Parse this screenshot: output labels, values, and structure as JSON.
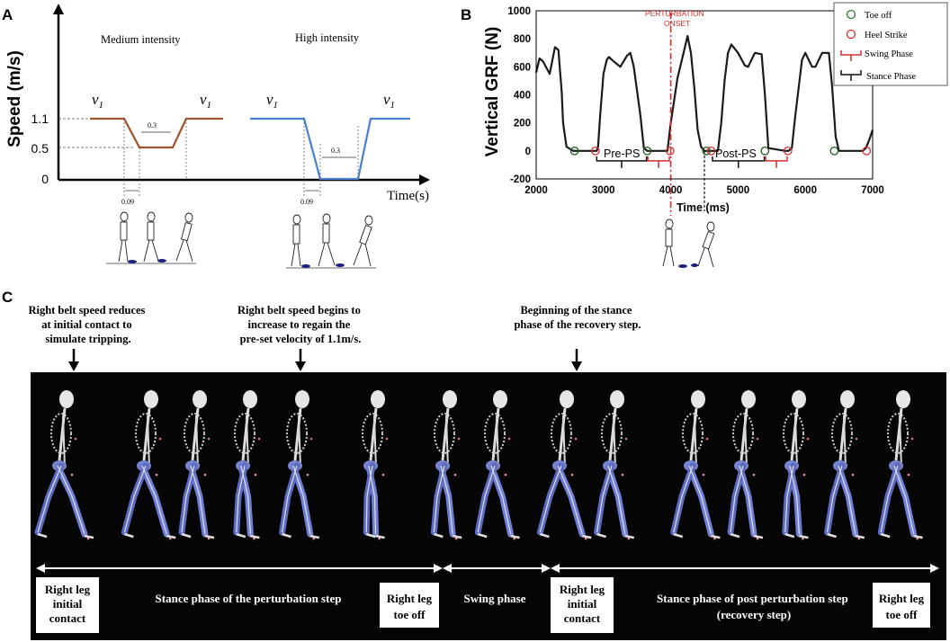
{
  "panels": {
    "a": {
      "label": "A"
    },
    "b": {
      "label": "B"
    },
    "c": {
      "label": "C"
    }
  },
  "chart_data": [
    {
      "type": "line",
      "id": "panel-a",
      "ylabel": "Speed (m/s)",
      "xlabel": "Time(s)",
      "y_ticks": [
        "1.1",
        "0.5",
        "0"
      ],
      "conditions": [
        {
          "title": "Medium intensity",
          "color": "#a0522d",
          "start_label": "v1",
          "end_label": "v1",
          "plateau_label": "0.3",
          "drop_label": "0.09",
          "points_speed": [
            1.1,
            1.1,
            0.5,
            0.5,
            1.1,
            1.1
          ]
        },
        {
          "title": "High intensity",
          "color": "#4a7fd0",
          "start_label": "v1",
          "end_label": "v1",
          "plateau_label": "0.3",
          "drop_label": "0.09",
          "points_speed": [
            1.1,
            1.1,
            0.0,
            0.0,
            1.1,
            1.1
          ]
        }
      ]
    },
    {
      "type": "line",
      "id": "panel-b",
      "ylabel": "Vertical GRF (N)",
      "xlabel": "Time (ms)",
      "xlim": [
        2000,
        7000
      ],
      "ylim": [
        -200,
        1000
      ],
      "x_ticks": [
        2000,
        3000,
        4000,
        5000,
        6000,
        7000
      ],
      "y_ticks": [
        -200,
        0,
        200,
        400,
        600,
        800,
        1000
      ],
      "perturbation_label": "PERTURBATION ONSET",
      "perturbation_ms": 4000,
      "phase_labels": [
        "Pre-PS",
        "Post-PS"
      ],
      "legend": [
        "Toe off",
        "Heel Strike",
        "Swing Phase",
        "Stance Phase"
      ],
      "legend_colors": {
        "toe_off": "#2e7d32",
        "heel_strike": "#d32f2f",
        "swing": "#d32f2f",
        "stance": "#111111"
      },
      "series": [
        {
          "color": "#1a1a1a",
          "x": [
            2000,
            2050,
            2100,
            2200,
            2280,
            2330,
            2380,
            2400,
            2450,
            2550,
            2600,
            2850,
            2900,
            2920,
            2950,
            3000,
            3050,
            3080,
            3150,
            3250,
            3350,
            3400,
            3450,
            3550,
            3600,
            3650,
            3700,
            3900,
            3950,
            4000,
            4100,
            4200,
            4250,
            4300,
            4350,
            4400,
            4450,
            4500,
            4550,
            4600,
            4650,
            4700,
            4750,
            4800,
            4850,
            4900,
            5000,
            5100,
            5150,
            5250,
            5350,
            5400,
            5450,
            5700,
            5750,
            5800,
            5850,
            5950,
            6000,
            6050,
            6100,
            6150,
            6250,
            6350,
            6400,
            6450,
            6500,
            6850,
            6900,
            6950,
            7000
          ],
          "y": [
            560,
            660,
            640,
            550,
            740,
            720,
            420,
            200,
            30,
            0,
            0,
            0,
            0,
            30,
            250,
            550,
            650,
            670,
            640,
            600,
            680,
            700,
            600,
            250,
            20,
            0,
            0,
            0,
            0,
            200,
            520,
            720,
            820,
            700,
            450,
            150,
            30,
            0,
            0,
            0,
            0,
            0,
            200,
            500,
            700,
            760,
            700,
            610,
            600,
            700,
            690,
            400,
            20,
            0,
            0,
            20,
            250,
            650,
            700,
            650,
            600,
            600,
            700,
            700,
            450,
            100,
            0,
            0,
            20,
            80,
            150
          ]
        }
      ]
    }
  ],
  "panel_c": {
    "annotations": [
      "Right belt speed reduces at initial contact to simulate tripping.",
      "Right belt speed begins to increase to regain the pre-set velocity of 1.1m/s.",
      "Beginning of the stance phase of the recovery step."
    ],
    "phase_labels": {
      "contact_1": "Right leg initial contact",
      "stance_pert": "Stance phase of the perturbation step",
      "toe_off_1": "Right leg toe off",
      "swing": "Swing phase",
      "contact_2": "Right leg initial contact",
      "stance_post": "Stance phase of post perturbation step (recovery step)",
      "toe_off_2": "Right leg toe off"
    },
    "skeleton_count": 17
  }
}
